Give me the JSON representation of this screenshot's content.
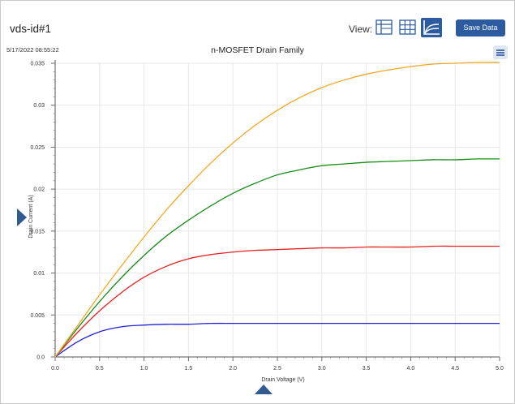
{
  "header": {
    "title": "vds-id#1",
    "view_label": "View:",
    "view_buttons": [
      {
        "icon": "table-list-icon",
        "active": false
      },
      {
        "icon": "grid-table-icon",
        "active": false
      },
      {
        "icon": "line-chart-icon",
        "active": true
      }
    ],
    "save_label": "Save Data"
  },
  "timestamp": "5/17/2022 08:55:22",
  "colors": {
    "accent": "#2c5b9f",
    "series": [
      "#2020d8",
      "#e82020",
      "#1a8c1a",
      "#f5a623"
    ],
    "grid": "#e8e8e8"
  },
  "chart_data": {
    "type": "line",
    "title": "n-MOSFET Drain Family",
    "xlabel": "Drain Voltage (V)",
    "ylabel": "Drain Current (A)",
    "xlim": [
      0,
      5
    ],
    "ylim": [
      0,
      0.035
    ],
    "grid": true,
    "x_ticks": [
      "0.0",
      "0.5",
      "1.0",
      "1.5",
      "2.0",
      "2.5",
      "3.0",
      "3.5",
      "4.0",
      "4.5",
      "5.0"
    ],
    "y_ticks": [
      "0.0",
      "0.005",
      "0.01",
      "0.015",
      "0.02",
      "0.025",
      "0.03",
      "0.035"
    ],
    "x": [
      0,
      0.25,
      0.5,
      0.75,
      1.0,
      1.25,
      1.5,
      1.75,
      2.0,
      2.25,
      2.5,
      2.75,
      3.0,
      3.25,
      3.5,
      3.75,
      4.0,
      4.25,
      4.5,
      4.75,
      5.0
    ],
    "series": [
      {
        "values": [
          0,
          0.0018,
          0.003,
          0.0036,
          0.0038,
          0.0039,
          0.0039,
          0.004,
          0.004,
          0.004,
          0.004,
          0.004,
          0.004,
          0.004,
          0.004,
          0.004,
          0.004,
          0.004,
          0.004,
          0.004,
          0.004
        ]
      },
      {
        "values": [
          0,
          0.0029,
          0.0055,
          0.0077,
          0.0095,
          0.0108,
          0.0117,
          0.0122,
          0.0125,
          0.0127,
          0.0128,
          0.0129,
          0.013,
          0.013,
          0.0131,
          0.0131,
          0.0131,
          0.0132,
          0.0132,
          0.0132,
          0.0132
        ]
      },
      {
        "values": [
          0,
          0.0034,
          0.0066,
          0.0095,
          0.0121,
          0.0144,
          0.0163,
          0.018,
          0.0195,
          0.0207,
          0.0217,
          0.0223,
          0.0228,
          0.023,
          0.0232,
          0.0233,
          0.0234,
          0.0235,
          0.0235,
          0.0236,
          0.0236
        ]
      },
      {
        "values": [
          0,
          0.0037,
          0.0074,
          0.0109,
          0.0143,
          0.0175,
          0.0204,
          0.0231,
          0.0255,
          0.0276,
          0.0294,
          0.0309,
          0.0321,
          0.033,
          0.0337,
          0.0342,
          0.0346,
          0.0349,
          0.035,
          0.0351,
          0.0351
        ]
      }
    ]
  }
}
